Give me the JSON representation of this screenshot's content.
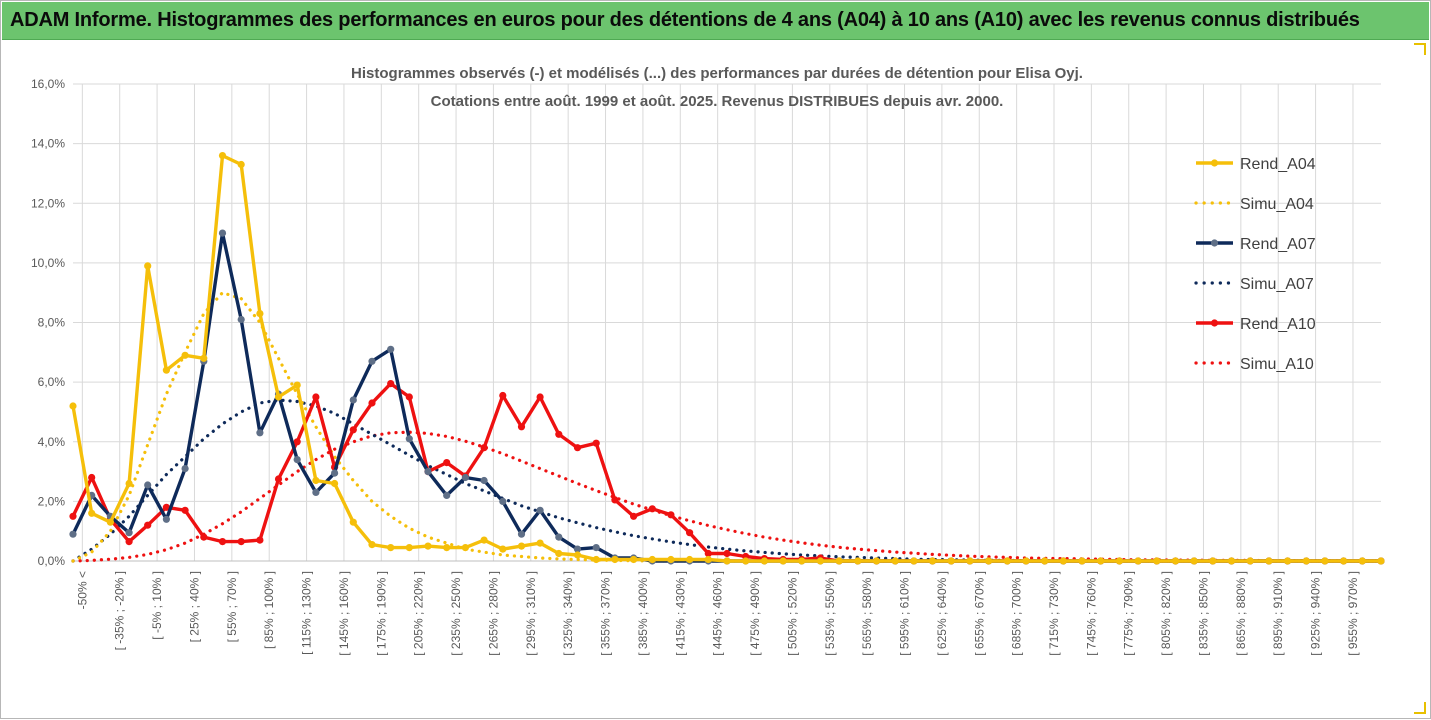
{
  "banner": {
    "title": "ADAM Informe. Histogrammes des performances en euros pour des détentions de 4 ans (A04) à 10 ans (A10) avec les revenus connus distribués"
  },
  "colors": {
    "banner_bg": "#6cc46e",
    "a04": "#f5bf0a",
    "a07": "#0e2a5a",
    "a10": "#ee1111",
    "grid": "#d9d9d9",
    "text": "#595959"
  },
  "chart_data": {
    "type": "line",
    "title": [
      "Histogrammes observés (-) et modélisés (...) des performances par durées de détention pour Elisa Oyj.",
      "Cotations entre août. 1999 et août. 2025. Revenus DISTRIBUES depuis avr. 2000."
    ],
    "xlabel": "",
    "ylabel": "",
    "ylim": [
      0,
      16
    ],
    "y_ticks": [
      "0,0%",
      "2,0%",
      "4,0%",
      "6,0%",
      "8,0%",
      "10,0%",
      "12,0%",
      "14,0%",
      "16,0%"
    ],
    "grid": true,
    "legend_position": "right",
    "x_labels": [
      "-50% <",
      "[ -35% ; -20% ]",
      "[ -5% ; 10% ]",
      "[ 25% ; 40% ]",
      "[ 55% ; 70% ]",
      "[ 85% ; 100% ]",
      "[ 115% ; 130% ]",
      "[ 145% ; 160% ]",
      "[ 175% ; 190% ]",
      "[ 205% ; 220% ]",
      "[ 235% ; 250% ]",
      "[ 265% ; 280% ]",
      "[ 295% ; 310% ]",
      "[ 325% ; 340% ]",
      "[ 355% ; 370% ]",
      "[ 385% ; 400% ]",
      "[ 415% ; 430% ]",
      "[ 445% ; 460% ]",
      "[ 475% ; 490% ]",
      "[ 505% ; 520% ]",
      "[ 535% ; 550% ]",
      "[ 565% ; 580% ]",
      "[ 595% ; 610% ]",
      "[ 625% ; 640% ]",
      "[ 655% ; 670% ]",
      "[ 685% ; 700% ]",
      "[ 715% ; 730% ]",
      "[ 745% ; 760% ]",
      "[ 775% ; 790% ]",
      "[ 805% ; 820% ]",
      "[ 835% ; 850% ]",
      "[ 865% ; 880% ]",
      "[ 895% ; 910% ]",
      "[ 925% ; 940% ]",
      "[ 955% ; 970% ]"
    ],
    "n_points": 71,
    "series": [
      {
        "name": "Rend_A04",
        "style": "solid",
        "color": "#f5bf0a",
        "values": [
          5.2,
          1.6,
          1.3,
          2.6,
          9.9,
          6.4,
          6.9,
          6.8,
          13.6,
          13.3,
          8.3,
          5.5,
          5.9,
          2.7,
          2.6,
          1.3,
          0.55,
          0.45,
          0.45,
          0.5,
          0.45,
          0.45,
          0.7,
          0.4,
          0.5,
          0.6,
          0.25,
          0.2,
          0.05,
          0.05,
          0.05,
          0.05,
          0.05,
          0.05,
          0.05,
          0,
          0,
          0,
          0,
          0,
          0,
          0,
          0,
          0,
          0,
          0,
          0,
          0,
          0,
          0,
          0,
          0,
          0,
          0,
          0,
          0,
          0,
          0,
          0,
          0,
          0,
          0,
          0,
          0,
          0,
          0,
          0,
          0,
          0,
          0,
          0
        ]
      },
      {
        "name": "Simu_A04",
        "style": "dotted",
        "color": "#f5bf0a",
        "values": [
          0,
          0.3,
          1.0,
          2.2,
          3.9,
          5.6,
          7.0,
          8.3,
          9.0,
          8.8,
          8.0,
          6.8,
          5.6,
          4.5,
          3.5,
          2.7,
          2.0,
          1.5,
          1.1,
          0.8,
          0.6,
          0.4,
          0.3,
          0.2,
          0.15,
          0.1,
          0.07,
          0.05,
          0.03,
          0.02,
          0.01,
          0,
          0,
          0,
          0,
          0,
          0,
          0,
          0,
          0,
          0,
          0,
          0,
          0,
          0,
          0,
          0,
          0,
          0,
          0,
          0,
          0,
          0,
          0,
          0,
          0,
          0,
          0,
          0,
          0,
          0,
          0,
          0,
          0,
          0,
          0,
          0,
          0,
          0,
          0,
          0
        ]
      },
      {
        "name": "Rend_A07",
        "style": "solid",
        "color": "#0e2a5a",
        "values": [
          0.9,
          2.2,
          1.5,
          0.95,
          2.55,
          1.4,
          3.1,
          6.7,
          11.0,
          8.1,
          4.3,
          5.6,
          3.4,
          2.3,
          2.95,
          5.4,
          6.7,
          7.1,
          4.1,
          3.0,
          2.2,
          2.8,
          2.7,
          2.0,
          0.9,
          1.7,
          0.8,
          0.4,
          0.45,
          0.1,
          0.1,
          0,
          0,
          0,
          0,
          0,
          0,
          0,
          0,
          0,
          0,
          0,
          0,
          0,
          0,
          0,
          0,
          0,
          0,
          0,
          0,
          0,
          0,
          0,
          0,
          0,
          0,
          0,
          0,
          0,
          0,
          0,
          0,
          0,
          0,
          0,
          0,
          0,
          0,
          0,
          0
        ]
      },
      {
        "name": "Simu_A07",
        "style": "dotted",
        "color": "#0e2a5a",
        "values": [
          0,
          0.4,
          0.9,
          1.5,
          2.2,
          2.9,
          3.5,
          4.1,
          4.6,
          5.0,
          5.3,
          5.4,
          5.35,
          5.2,
          4.95,
          4.6,
          4.25,
          3.9,
          3.55,
          3.2,
          2.9,
          2.6,
          2.35,
          2.1,
          1.85,
          1.65,
          1.45,
          1.28,
          1.12,
          0.98,
          0.85,
          0.74,
          0.64,
          0.55,
          0.47,
          0.4,
          0.34,
          0.29,
          0.24,
          0.2,
          0.17,
          0.14,
          0.12,
          0.1,
          0.08,
          0.06,
          0.05,
          0.04,
          0.03,
          0.02,
          0.02,
          0.01,
          0.01,
          0.01,
          0,
          0,
          0,
          0,
          0,
          0,
          0,
          0,
          0,
          0,
          0,
          0,
          0,
          0,
          0,
          0,
          0
        ]
      },
      {
        "name": "Rend_A10",
        "style": "solid",
        "color": "#ee1111",
        "values": [
          1.5,
          2.8,
          1.4,
          0.65,
          1.2,
          1.8,
          1.7,
          0.8,
          0.65,
          0.65,
          0.7,
          2.75,
          4.0,
          5.5,
          3.15,
          4.4,
          5.3,
          5.95,
          5.5,
          3.0,
          3.3,
          2.85,
          3.8,
          5.55,
          4.5,
          5.5,
          4.25,
          3.8,
          3.95,
          2.05,
          1.5,
          1.75,
          1.55,
          0.95,
          0.25,
          0.25,
          0.15,
          0.08,
          0.05,
          0.05,
          0.1,
          0,
          0,
          0,
          0,
          0,
          0,
          0,
          0,
          0,
          0,
          0,
          0,
          0,
          0,
          0,
          0,
          0,
          0,
          0,
          0,
          0,
          0,
          0,
          0,
          0,
          0,
          0,
          0,
          0,
          0
        ]
      },
      {
        "name": "Simu_A10",
        "style": "dotted",
        "color": "#ee1111",
        "values": [
          0,
          0.02,
          0.06,
          0.12,
          0.22,
          0.38,
          0.6,
          0.9,
          1.25,
          1.65,
          2.1,
          2.55,
          3.0,
          3.4,
          3.75,
          4.0,
          4.2,
          4.3,
          4.32,
          4.28,
          4.18,
          4.02,
          3.82,
          3.6,
          3.35,
          3.1,
          2.85,
          2.6,
          2.36,
          2.13,
          1.91,
          1.71,
          1.52,
          1.35,
          1.19,
          1.05,
          0.92,
          0.8,
          0.7,
          0.61,
          0.53,
          0.46,
          0.4,
          0.35,
          0.3,
          0.26,
          0.22,
          0.19,
          0.16,
          0.14,
          0.12,
          0.1,
          0.09,
          0.08,
          0.07,
          0.06,
          0.05,
          0.04,
          0.04,
          0.03,
          0.03,
          0.02,
          0.02,
          0.02,
          0.01,
          0.01,
          0.01,
          0.01,
          0,
          0,
          0
        ]
      }
    ]
  }
}
